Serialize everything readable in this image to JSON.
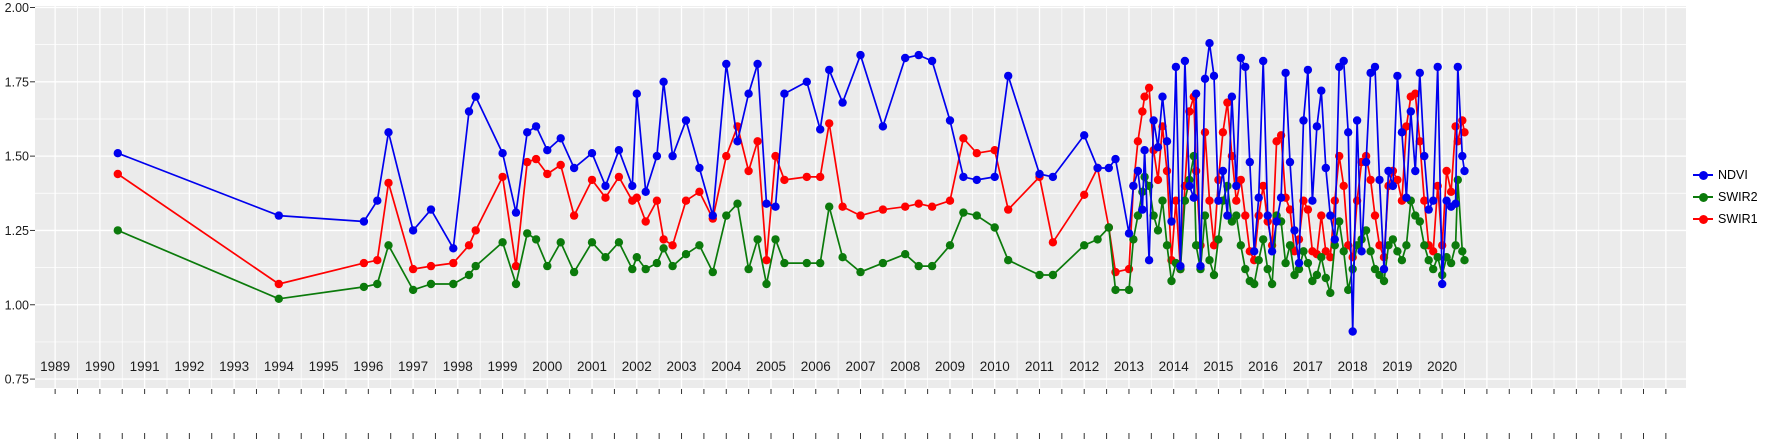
{
  "chart_data": {
    "type": "line",
    "xlim": [
      1988.55,
      2025.45
    ],
    "ylim": [
      0.75,
      2.0
    ],
    "x_ticks": [
      "1989",
      "1990",
      "1991",
      "1992",
      "1993",
      "1994",
      "1995",
      "1996",
      "1997",
      "1998",
      "1999",
      "2000",
      "2001",
      "2002",
      "2003",
      "2004",
      "2005",
      "2006",
      "2007",
      "2008",
      "2009",
      "2010",
      "2011",
      "2012",
      "2013",
      "2014",
      "2015",
      "2016",
      "2017",
      "2018",
      "2019",
      "2020"
    ],
    "y_ticks": [
      "0.75",
      "1.00",
      "1.25",
      "1.50",
      "1.75",
      "2.00"
    ],
    "legend_position": "right",
    "colors": {
      "figure_bg": "#FFFFFF",
      "panel_bg": "#EBEBEB",
      "grid": "#FFFFFF",
      "axis_text": "#1C1C1C"
    },
    "columns": [
      "year_decimal",
      "NDVI",
      "SWIR1",
      "SWIR2"
    ],
    "series": [
      {
        "name": "NDVI",
        "color": "#0000EE",
        "column": 1
      },
      {
        "name": "SWIR2",
        "color": "#0B7A0B",
        "column": 3
      },
      {
        "name": "SWIR1",
        "color": "#FF0000",
        "column": 2
      }
    ],
    "points": [
      [
        1990.4,
        1.51,
        1.44,
        1.25
      ],
      [
        1994.0,
        1.3,
        1.07,
        1.02
      ],
      [
        1995.9,
        1.28,
        1.14,
        1.06
      ],
      [
        1996.2,
        1.35,
        1.15,
        1.07
      ],
      [
        1996.45,
        1.58,
        1.41,
        1.2
      ],
      [
        1997.0,
        1.25,
        1.12,
        1.05
      ],
      [
        1997.4,
        1.32,
        1.13,
        1.07
      ],
      [
        1997.9,
        1.19,
        1.14,
        1.07
      ],
      [
        1998.25,
        1.65,
        1.2,
        1.1
      ],
      [
        1998.4,
        1.7,
        1.25,
        1.13
      ],
      [
        1999.0,
        1.51,
        1.43,
        1.21
      ],
      [
        1999.3,
        1.31,
        1.13,
        1.07
      ],
      [
        1999.55,
        1.58,
        1.48,
        1.24
      ],
      [
        1999.75,
        1.6,
        1.49,
        1.22
      ],
      [
        2000.0,
        1.52,
        1.44,
        1.13
      ],
      [
        2000.3,
        1.56,
        1.47,
        1.21
      ],
      [
        2000.6,
        1.46,
        1.3,
        1.11
      ],
      [
        2001.0,
        1.51,
        1.42,
        1.21
      ],
      [
        2001.3,
        1.4,
        1.36,
        1.16
      ],
      [
        2001.6,
        1.52,
        1.43,
        1.21
      ],
      [
        2001.9,
        1.4,
        1.35,
        1.12
      ],
      [
        2002.0,
        1.71,
        1.36,
        1.16
      ],
      [
        2002.2,
        1.38,
        1.28,
        1.12
      ],
      [
        2002.45,
        1.5,
        1.35,
        1.14
      ],
      [
        2002.6,
        1.75,
        1.22,
        1.19
      ],
      [
        2002.8,
        1.5,
        1.2,
        1.13
      ],
      [
        2003.1,
        1.62,
        1.35,
        1.17
      ],
      [
        2003.4,
        1.46,
        1.38,
        1.2
      ],
      [
        2003.7,
        1.3,
        1.29,
        1.11
      ],
      [
        2004.0,
        1.81,
        1.5,
        1.3
      ],
      [
        2004.25,
        1.55,
        1.6,
        1.34
      ],
      [
        2004.5,
        1.71,
        1.45,
        1.12
      ],
      [
        2004.7,
        1.81,
        1.55,
        1.22
      ],
      [
        2004.9,
        1.34,
        1.15,
        1.07
      ],
      [
        2005.1,
        1.33,
        1.5,
        1.22
      ],
      [
        2005.3,
        1.71,
        1.42,
        1.14
      ],
      [
        2005.8,
        1.75,
        1.43,
        1.14
      ],
      [
        2006.1,
        1.59,
        1.43,
        1.14
      ],
      [
        2006.3,
        1.79,
        1.61,
        1.33
      ],
      [
        2006.6,
        1.68,
        1.33,
        1.16
      ],
      [
        2007.0,
        1.84,
        1.3,
        1.11
      ],
      [
        2007.5,
        1.6,
        1.32,
        1.14
      ],
      [
        2008.0,
        1.83,
        1.33,
        1.17
      ],
      [
        2008.3,
        1.84,
        1.34,
        1.13
      ],
      [
        2008.6,
        1.82,
        1.33,
        1.13
      ],
      [
        2009.0,
        1.62,
        1.35,
        1.2
      ],
      [
        2009.3,
        1.43,
        1.56,
        1.31
      ],
      [
        2009.6,
        1.42,
        1.51,
        1.3
      ],
      [
        2010.0,
        1.43,
        1.52,
        1.26
      ],
      [
        2010.3,
        1.77,
        1.32,
        1.15
      ],
      [
        2011.0,
        1.44,
        1.43,
        1.1
      ],
      [
        2011.3,
        1.43,
        1.21,
        1.1
      ],
      [
        2012.0,
        1.57,
        1.37,
        1.2
      ],
      [
        2012.3,
        1.46,
        1.46,
        1.22
      ],
      [
        2012.55,
        1.46,
        1.26,
        1.26
      ],
      [
        2012.7,
        1.49,
        1.11,
        1.05
      ],
      [
        2013.0,
        1.24,
        1.12,
        1.05
      ],
      [
        2013.1,
        1.4,
        1.4,
        1.22
      ],
      [
        2013.2,
        1.45,
        1.55,
        1.3
      ],
      [
        2013.3,
        1.32,
        1.65,
        1.38
      ],
      [
        2013.35,
        1.52,
        1.7,
        1.43
      ],
      [
        2013.45,
        1.15,
        1.73,
        1.4
      ],
      [
        2013.55,
        1.62,
        1.52,
        1.3
      ],
      [
        2013.65,
        1.53,
        1.42,
        1.25
      ],
      [
        2013.75,
        1.7,
        1.6,
        1.35
      ],
      [
        2013.85,
        1.55,
        1.45,
        1.2
      ],
      [
        2013.95,
        1.28,
        1.15,
        1.08
      ],
      [
        2014.05,
        1.8,
        1.35,
        1.14
      ],
      [
        2014.15,
        1.13,
        1.12,
        1.12
      ],
      [
        2014.25,
        1.82,
        1.4,
        1.35
      ],
      [
        2014.35,
        1.4,
        1.65,
        1.42
      ],
      [
        2014.45,
        1.36,
        1.7,
        1.5
      ],
      [
        2014.5,
        1.71,
        1.45,
        1.2
      ],
      [
        2014.6,
        1.13,
        1.2,
        1.12
      ],
      [
        2014.7,
        1.76,
        1.58,
        1.3
      ],
      [
        2014.8,
        1.88,
        1.35,
        1.15
      ],
      [
        2014.9,
        1.77,
        1.2,
        1.1
      ],
      [
        2015.0,
        1.35,
        1.42,
        1.22
      ],
      [
        2015.1,
        1.45,
        1.58,
        1.35
      ],
      [
        2015.2,
        1.3,
        1.68,
        1.4
      ],
      [
        2015.3,
        1.7,
        1.5,
        1.28
      ],
      [
        2015.4,
        1.4,
        1.35,
        1.3
      ],
      [
        2015.5,
        1.83,
        1.42,
        1.2
      ],
      [
        2015.6,
        1.8,
        1.3,
        1.12
      ],
      [
        2015.7,
        1.48,
        1.18,
        1.08
      ],
      [
        2015.8,
        1.18,
        1.15,
        1.07
      ],
      [
        2015.9,
        1.36,
        1.3,
        1.15
      ],
      [
        2016.0,
        1.82,
        1.4,
        1.22
      ],
      [
        2016.1,
        1.3,
        1.28,
        1.12
      ],
      [
        2016.2,
        1.18,
        1.2,
        1.07
      ],
      [
        2016.3,
        1.28,
        1.55,
        1.3
      ],
      [
        2016.4,
        1.36,
        1.57,
        1.28
      ],
      [
        2016.5,
        1.78,
        1.36,
        1.14
      ],
      [
        2016.6,
        1.48,
        1.32,
        1.2
      ],
      [
        2016.7,
        1.25,
        1.18,
        1.1
      ],
      [
        2016.8,
        1.14,
        1.22,
        1.12
      ],
      [
        2016.9,
        1.62,
        1.35,
        1.18
      ],
      [
        2017.0,
        1.79,
        1.32,
        1.14
      ],
      [
        2017.1,
        1.35,
        1.18,
        1.08
      ],
      [
        2017.2,
        1.6,
        1.17,
        1.1
      ],
      [
        2017.3,
        1.72,
        1.3,
        1.16
      ],
      [
        2017.4,
        1.46,
        1.18,
        1.09
      ],
      [
        2017.5,
        1.3,
        1.16,
        1.04
      ],
      [
        2017.6,
        1.22,
        1.35,
        1.2
      ],
      [
        2017.7,
        1.8,
        1.5,
        1.28
      ],
      [
        2017.8,
        1.82,
        1.4,
        1.18
      ],
      [
        2017.9,
        1.58,
        1.2,
        1.05
      ],
      [
        2018.0,
        0.91,
        1.16,
        1.12
      ],
      [
        2018.1,
        1.62,
        1.35,
        1.2
      ],
      [
        2018.2,
        1.18,
        1.48,
        1.22
      ],
      [
        2018.3,
        1.48,
        1.5,
        1.25
      ],
      [
        2018.4,
        1.78,
        1.42,
        1.18
      ],
      [
        2018.5,
        1.8,
        1.3,
        1.12
      ],
      [
        2018.6,
        1.42,
        1.2,
        1.1
      ],
      [
        2018.7,
        1.12,
        1.16,
        1.08
      ],
      [
        2018.8,
        1.45,
        1.4,
        1.2
      ],
      [
        2018.9,
        1.4,
        1.45,
        1.22
      ],
      [
        2019.0,
        1.77,
        1.42,
        1.18
      ],
      [
        2019.1,
        1.58,
        1.35,
        1.15
      ],
      [
        2019.2,
        1.36,
        1.6,
        1.2
      ],
      [
        2019.3,
        1.65,
        1.7,
        1.35
      ],
      [
        2019.4,
        1.45,
        1.71,
        1.3
      ],
      [
        2019.5,
        1.78,
        1.55,
        1.28
      ],
      [
        2019.6,
        1.5,
        1.35,
        1.2
      ],
      [
        2019.7,
        1.32,
        1.2,
        1.15
      ],
      [
        2019.8,
        1.35,
        1.18,
        1.12
      ],
      [
        2019.9,
        1.8,
        1.4,
        1.16
      ],
      [
        2020.0,
        1.07,
        1.2,
        1.1
      ],
      [
        2020.1,
        1.35,
        1.45,
        1.16
      ],
      [
        2020.2,
        1.33,
        1.38,
        1.14
      ],
      [
        2020.3,
        1.34,
        1.6,
        1.2
      ],
      [
        2020.35,
        1.8,
        1.55,
        1.42
      ],
      [
        2020.45,
        1.5,
        1.62,
        1.18
      ],
      [
        2020.5,
        1.45,
        1.58,
        1.15
      ]
    ]
  }
}
